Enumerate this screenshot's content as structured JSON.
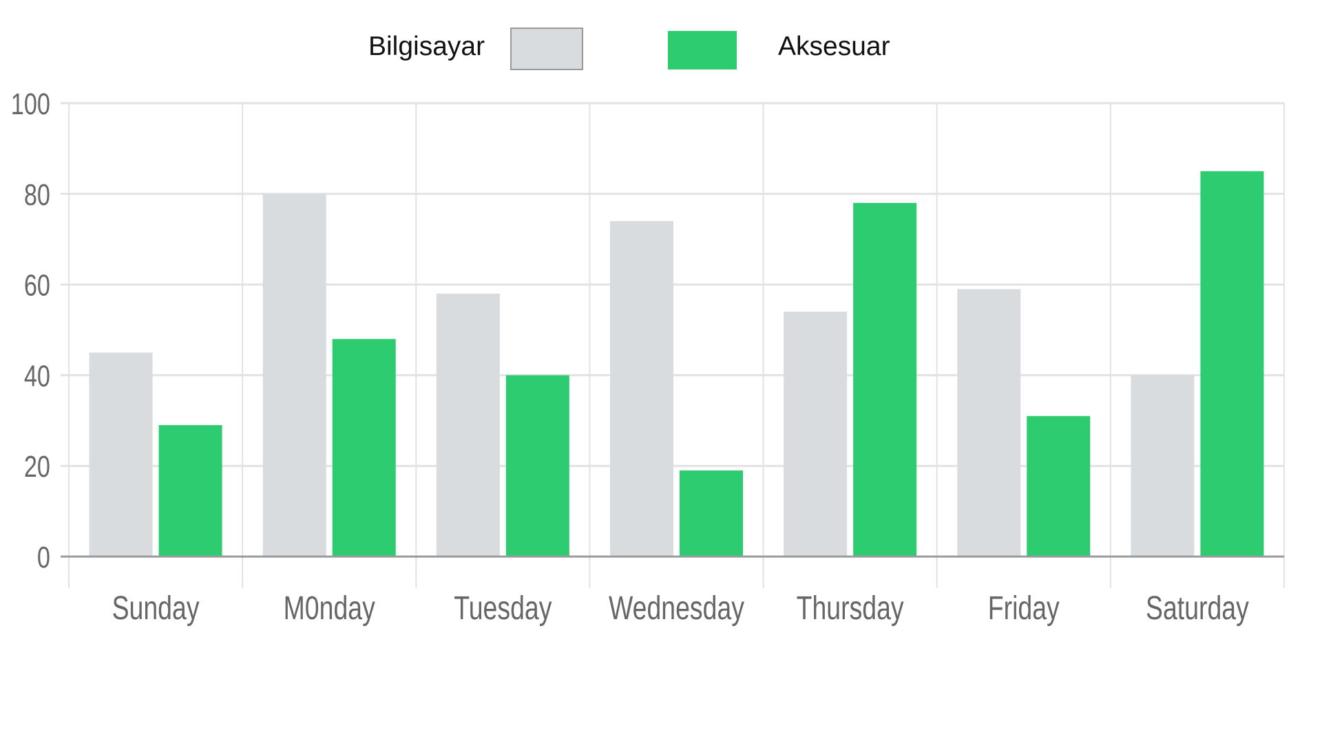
{
  "chart_data": {
    "type": "bar",
    "categories": [
      "Sunday",
      "M0nday",
      "Tuesday",
      "Wednesday",
      "Thursday",
      "Friday",
      "Saturday"
    ],
    "series": [
      {
        "name": "Bilgisayar",
        "color": "#d9dcdf",
        "values": [
          45,
          80,
          58,
          74,
          54,
          59,
          40
        ]
      },
      {
        "name": "Aksesuar",
        "color": "#2ecc71",
        "values": [
          29,
          48,
          40,
          19,
          78,
          31,
          85
        ]
      }
    ],
    "yticks": [
      "0",
      "20",
      "40",
      "60",
      "80",
      "100"
    ],
    "ylim": [
      0,
      100
    ],
    "grid": true,
    "legend_position": "top-center"
  }
}
